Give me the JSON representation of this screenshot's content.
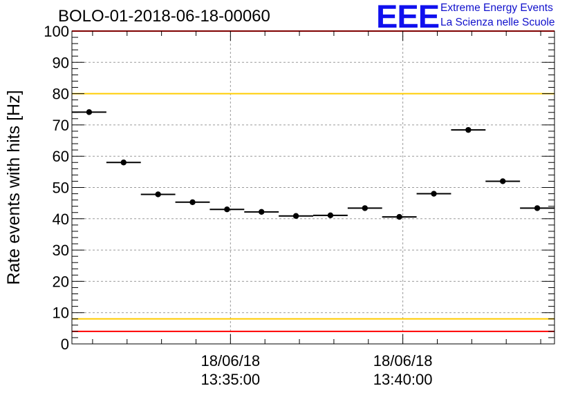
{
  "header": {
    "title": "BOLO-01-2018-06-18-00060",
    "logo_text": "EEE",
    "logo_line1": "Extreme Energy Events",
    "logo_line2": "La Scienza nelle Scuole"
  },
  "chart_data": {
    "type": "scatter",
    "title": "BOLO-01-2018-06-18-00060",
    "ylabel": "Rate events with hits [Hz]",
    "xlabel": "",
    "ylim": [
      0,
      100
    ],
    "yticks": [
      0,
      10,
      20,
      30,
      40,
      50,
      60,
      70,
      80,
      90,
      100
    ],
    "x_time_range": [
      "13:30:24",
      "13:44:24"
    ],
    "xticks": [
      {
        "time": "13:35:00",
        "date": "18/06/18"
      },
      {
        "time": "13:40:00",
        "date": "18/06/18"
      }
    ],
    "grid": true,
    "reference_lines": [
      {
        "y": 100,
        "color": "#ff0000"
      },
      {
        "y": 80,
        "color": "#ffcc00"
      },
      {
        "y": 8,
        "color": "#ffcc00"
      },
      {
        "y": 4,
        "color": "#ff0000"
      }
    ],
    "series": [
      {
        "points": [
          {
            "start": "13:30:24",
            "end": "13:31:24",
            "y": 74.1
          },
          {
            "start": "13:31:24",
            "end": "13:32:24",
            "y": 58.0
          },
          {
            "start": "13:32:24",
            "end": "13:33:24",
            "y": 47.8
          },
          {
            "start": "13:33:24",
            "end": "13:34:24",
            "y": 45.3
          },
          {
            "start": "13:34:24",
            "end": "13:35:24",
            "y": 43.0
          },
          {
            "start": "13:35:24",
            "end": "13:36:24",
            "y": 42.2
          },
          {
            "start": "13:36:24",
            "end": "13:37:24",
            "y": 40.9
          },
          {
            "start": "13:37:24",
            "end": "13:38:24",
            "y": 41.1
          },
          {
            "start": "13:38:24",
            "end": "13:39:24",
            "y": 43.4
          },
          {
            "start": "13:39:24",
            "end": "13:40:24",
            "y": 40.6
          },
          {
            "start": "13:40:24",
            "end": "13:41:24",
            "y": 48.0
          },
          {
            "start": "13:41:24",
            "end": "13:42:24",
            "y": 68.4
          },
          {
            "start": "13:42:24",
            "end": "13:43:24",
            "y": 52.0
          },
          {
            "start": "13:43:24",
            "end": "13:44:24",
            "y": 43.4
          }
        ]
      }
    ],
    "colors": {
      "marker": "#000000",
      "grid": "#999999",
      "axis": "#000000"
    }
  }
}
